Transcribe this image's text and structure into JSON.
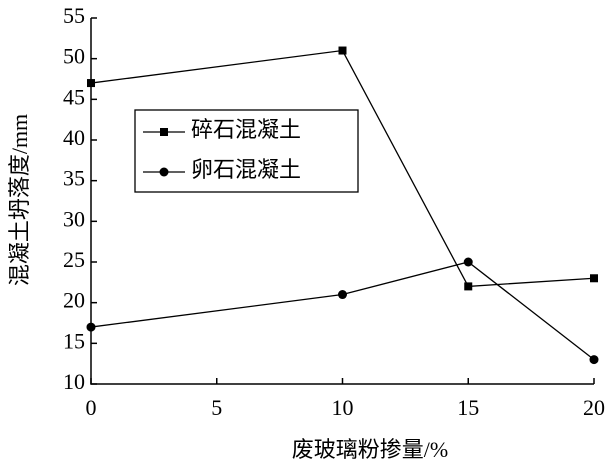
{
  "chart_data": {
    "type": "line",
    "x_label": "废玻璃粉掺量/%",
    "y_label": "混凝土坍落度/mm",
    "x": [
      0,
      10,
      15,
      20
    ],
    "series": [
      {
        "name": "碎石混凝土",
        "color": "#000000",
        "marker": "square",
        "values": [
          47,
          51,
          22,
          23
        ]
      },
      {
        "name": "卵石混凝土",
        "color": "#000000",
        "marker": "circle",
        "values": [
          17,
          21,
          25,
          13
        ]
      }
    ],
    "xlim": [
      0,
      20
    ],
    "xticks": [
      0,
      5,
      10,
      15,
      20
    ],
    "ylim": [
      10,
      55
    ],
    "yticks": [
      10,
      15,
      20,
      25,
      30,
      35,
      40,
      45,
      50,
      55
    ],
    "legend": "upper left",
    "grid": false
  }
}
